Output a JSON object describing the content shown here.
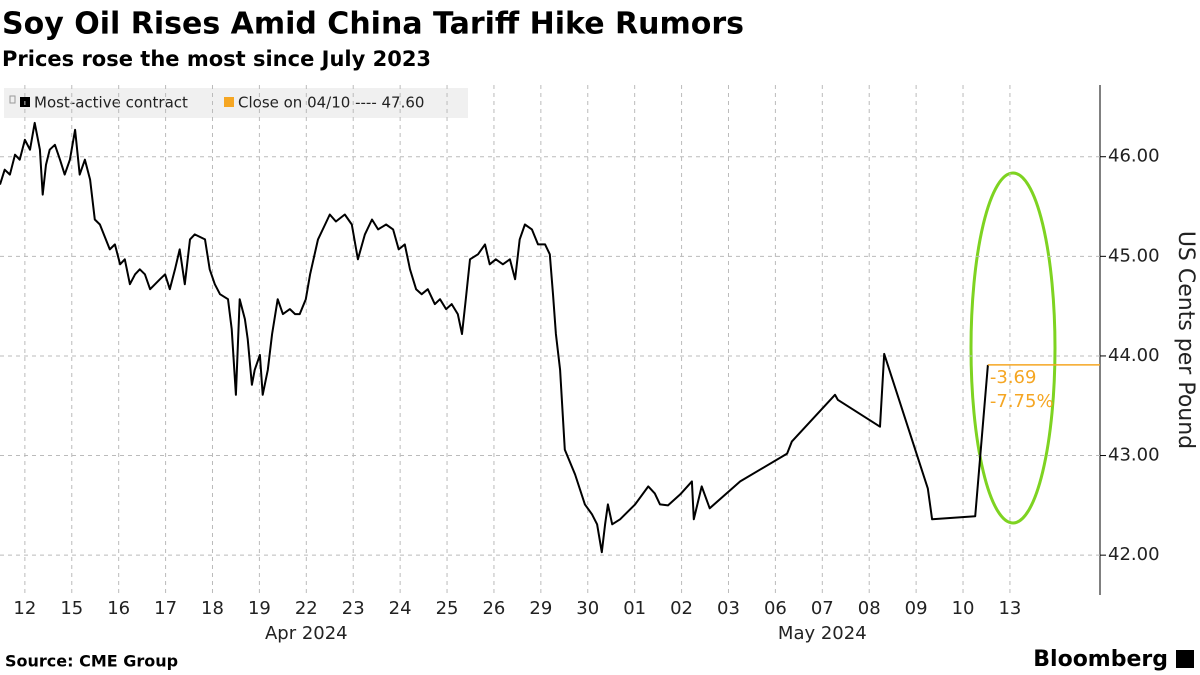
{
  "chart_data": {
    "type": "line",
    "title": "Soy Oil Rises Amid China Tariff Hike Rumors",
    "subtitle": "Prices rose the most since July 2023",
    "y_axis_label": "US Cents per Pound",
    "source": "Source: CME Group",
    "brand": "Bloomberg",
    "grid": true,
    "xlim": [
      -0.53,
      22.92
    ],
    "ylim": [
      41.6,
      46.72
    ],
    "yticks": [
      {
        "value": 42,
        "label": "42.00"
      },
      {
        "value": 43,
        "label": "43.00"
      },
      {
        "value": 44,
        "label": "44.00"
      },
      {
        "value": 45,
        "label": "45.00"
      },
      {
        "value": 46,
        "label": "46.00"
      }
    ],
    "xticks": [
      {
        "value": 0,
        "label": "12"
      },
      {
        "value": 1,
        "label": "15"
      },
      {
        "value": 2,
        "label": "16"
      },
      {
        "value": 3,
        "label": "17"
      },
      {
        "value": 4,
        "label": "18"
      },
      {
        "value": 5,
        "label": "19"
      },
      {
        "value": 6,
        "label": "22"
      },
      {
        "value": 7,
        "label": "23"
      },
      {
        "value": 8,
        "label": "24"
      },
      {
        "value": 9,
        "label": "25"
      },
      {
        "value": 10,
        "label": "26"
      },
      {
        "value": 11,
        "label": "29"
      },
      {
        "value": 12,
        "label": "30"
      },
      {
        "value": 13,
        "label": "01"
      },
      {
        "value": 14,
        "label": "02"
      },
      {
        "value": 15,
        "label": "03"
      },
      {
        "value": 16,
        "label": "06"
      },
      {
        "value": 17,
        "label": "07"
      },
      {
        "value": 18,
        "label": "08"
      },
      {
        "value": 19,
        "label": "09"
      },
      {
        "value": 20,
        "label": "10"
      },
      {
        "value": 21,
        "label": "13"
      }
    ],
    "month_labels": [
      {
        "value": 6,
        "label": "Apr 2024"
      },
      {
        "value": 17,
        "label": "May 2024"
      }
    ],
    "reference": {
      "name": "Close on 04/10 ---- 47.60",
      "color": "#f5a623"
    },
    "annotations": [
      "-3.69",
      "-7.75%"
    ],
    "x": [
      -0.53,
      -0.43,
      -0.32,
      -0.21,
      -0.11,
      0,
      0.11,
      0.21,
      0.32,
      0.38,
      0.45,
      0.53,
      0.64,
      0.75,
      0.85,
      0.96,
      1.07,
      1.17,
      1.28,
      1.39,
      1.49,
      1.6,
      1.81,
      1.92,
      2.03,
      2.13,
      2.24,
      2.35,
      2.45,
      2.56,
      2.67,
      2.88,
      2.99,
      3.09,
      3.2,
      3.3,
      3.41,
      3.52,
      3.62,
      3.84,
      3.94,
      4.05,
      4.16,
      4.33,
      4.41,
      4.5,
      4.58,
      4.69,
      4.75,
      4.84,
      4.9,
      5.01,
      5.07,
      5.18,
      5.27,
      5.39,
      5.5,
      5.65,
      5.76,
      5.86,
      5.99,
      6.08,
      6.25,
      6.4,
      6.5,
      6.63,
      6.82,
      6.97,
      7.1,
      7.25,
      7.4,
      7.53,
      7.7,
      7.85,
      7.97,
      8.1,
      8.21,
      8.34,
      8.46,
      8.59,
      8.74,
      8.85,
      8.98,
      9.1,
      9.23,
      9.32,
      9.4,
      9.49,
      9.66,
      9.81,
      9.91,
      10.04,
      10.19,
      10.34,
      10.45,
      10.55,
      10.66,
      10.81,
      10.94,
      11.09,
      11.19,
      11.26,
      11.32,
      11.41,
      11.51,
      11.73,
      11.94,
      12.09,
      12.2,
      12.3,
      12.37,
      12.43,
      12.52,
      12.69,
      13.01,
      13.29,
      13.43,
      13.54,
      13.71,
      13.97,
      14.22,
      14.26,
      14.43,
      14.6,
      15.25,
      16.25,
      16.35,
      17.27,
      17.33,
      18.23,
      18.32,
      19.25,
      19.34,
      20.26,
      20.53
    ],
    "series": [
      {
        "name": "Most-active contract",
        "color": "#000000",
        "values": [
          45.72,
          45.87,
          45.82,
          46.02,
          45.97,
          46.17,
          46.07,
          46.34,
          46.07,
          45.62,
          45.92,
          46.07,
          46.12,
          45.97,
          45.82,
          45.97,
          46.27,
          45.82,
          45.97,
          45.77,
          45.37,
          45.32,
          45.07,
          45.12,
          44.92,
          44.97,
          44.72,
          44.82,
          44.87,
          44.82,
          44.67,
          44.77,
          44.82,
          44.67,
          44.87,
          45.07,
          44.72,
          45.17,
          45.22,
          45.17,
          44.87,
          44.72,
          44.62,
          44.57,
          44.27,
          43.61,
          44.57,
          44.37,
          44.17,
          43.71,
          43.86,
          44.01,
          43.61,
          43.86,
          44.22,
          44.57,
          44.42,
          44.47,
          44.42,
          44.42,
          44.57,
          44.82,
          45.17,
          45.32,
          45.42,
          45.35,
          45.42,
          45.32,
          44.97,
          45.22,
          45.37,
          45.27,
          45.32,
          45.27,
          45.07,
          45.12,
          44.87,
          44.67,
          44.62,
          44.67,
          44.52,
          44.57,
          44.47,
          44.52,
          44.42,
          44.22,
          44.57,
          44.97,
          45.02,
          45.12,
          44.92,
          44.97,
          44.92,
          44.97,
          44.77,
          45.17,
          45.32,
          45.27,
          45.12,
          45.12,
          45.02,
          44.62,
          44.22,
          43.86,
          43.06,
          42.81,
          42.51,
          42.41,
          42.31,
          42.03,
          42.31,
          42.51,
          42.31,
          42.36,
          42.51,
          42.69,
          42.62,
          42.51,
          42.5,
          42.61,
          42.74,
          42.36,
          42.69,
          42.47,
          42.74,
          43.02,
          43.14,
          43.61,
          43.56,
          43.29,
          44.02,
          42.67,
          42.36,
          42.39,
          43.91
        ]
      }
    ]
  }
}
